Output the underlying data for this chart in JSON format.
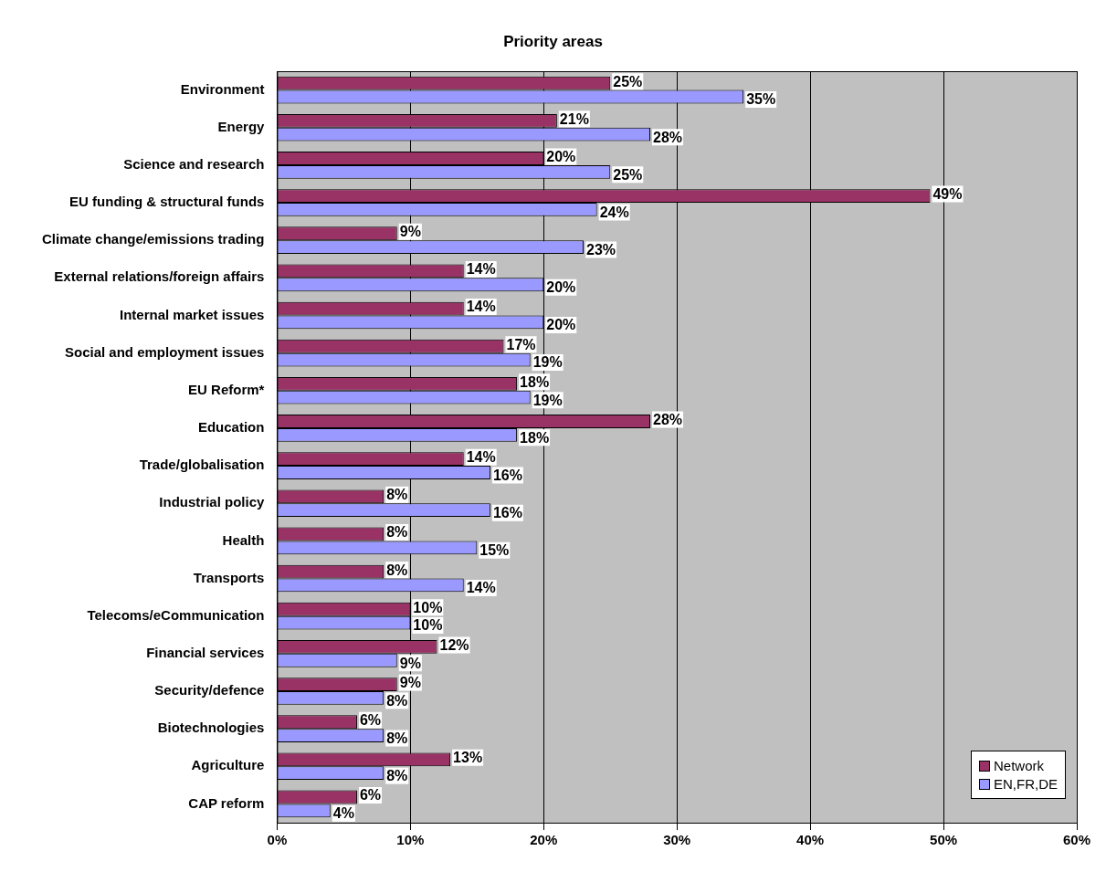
{
  "chart_data": {
    "type": "bar",
    "orientation": "horizontal",
    "title": "Priority areas",
    "categories": [
      "Environment",
      "Energy",
      "Science and research",
      "EU funding & structural funds",
      "Climate change/emissions trading",
      "External relations/foreign affairs",
      "Internal market issues",
      "Social and employment issues",
      "EU Reform*",
      "Education",
      "Trade/globalisation",
      "Industrial policy",
      "Health",
      "Transports",
      "Telecoms/eCommunication",
      "Financial services",
      "Security/defence",
      "Biotechnologies",
      "Agriculture",
      "CAP reform"
    ],
    "series": [
      {
        "name": "Network",
        "color": "#993366",
        "values": [
          25,
          21,
          20,
          49,
          9,
          14,
          14,
          17,
          18,
          28,
          14,
          8,
          8,
          8,
          10,
          12,
          9,
          6,
          13,
          6
        ],
        "value_labels": [
          "25%",
          "21%",
          "20%",
          "49%",
          "9%",
          "14%",
          "14%",
          "17%",
          "18%",
          "28%",
          "14%",
          "8%",
          "8%",
          "8%",
          "10%",
          "12%",
          "9%",
          "6%",
          "13%",
          "6%"
        ]
      },
      {
        "name": "EN,FR,DE",
        "color": "#9999ff",
        "values": [
          35,
          28,
          25,
          24,
          23,
          20,
          20,
          19,
          19,
          18,
          16,
          16,
          15,
          14,
          10,
          9,
          8,
          8,
          8,
          4
        ],
        "value_labels": [
          "35%",
          "28%",
          "25%",
          "24%",
          "23%",
          "20%",
          "20%",
          "19%",
          "19%",
          "18%",
          "16%",
          "16%",
          "15%",
          "14%",
          "10%",
          "9%",
          "8%",
          "8%",
          "8%",
          "4%"
        ]
      }
    ],
    "xlim": [
      0,
      60
    ],
    "xticks": [
      {
        "value": 0,
        "label": "0%"
      },
      {
        "value": 10,
        "label": "10%"
      },
      {
        "value": 20,
        "label": "20%"
      },
      {
        "value": 30,
        "label": "30%"
      },
      {
        "value": 40,
        "label": "40%"
      },
      {
        "value": 50,
        "label": "50%"
      },
      {
        "value": 60,
        "label": "60%"
      }
    ],
    "grid": "x",
    "legend": "bottom right"
  }
}
